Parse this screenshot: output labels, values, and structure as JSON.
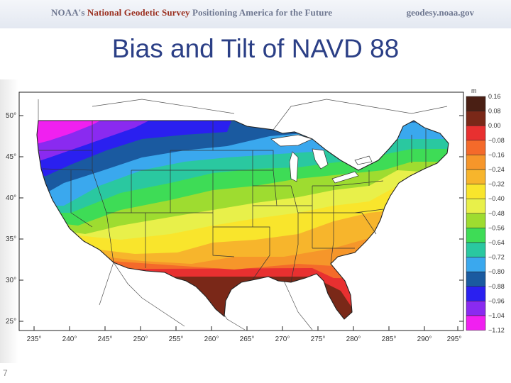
{
  "header": {
    "prefix": "NOAA's",
    "agency": "National Geodetic Survey",
    "tagline": "Positioning America for the Future",
    "site": "geodesy.noaa.gov"
  },
  "title": "Bias and Tilt of NAVD 88",
  "slide_number": "7",
  "map": {
    "latitude_labels": [
      "50°",
      "45°",
      "40°",
      "35°",
      "30°",
      "25°"
    ],
    "longitude_labels": [
      "235°",
      "240°",
      "245°",
      "250°",
      "255°",
      "260°",
      "265°",
      "270°",
      "275°",
      "280°",
      "285°",
      "290°",
      "295°"
    ],
    "legend": {
      "unit": "m",
      "colors": [
        "#4a1f14",
        "#7a2818",
        "#e83030",
        "#f46a2a",
        "#f6962a",
        "#f7b52c",
        "#f9e52c",
        "#e8f04a",
        "#9edc30",
        "#3edc56",
        "#2ac8a0",
        "#3aa8ee",
        "#1a5aa0",
        "#2a20f0",
        "#8a2af0",
        "#f020f0"
      ],
      "labels": [
        "0.16",
        "0.08",
        "0.00",
        "−0.08",
        "−0.16",
        "−0.24",
        "−0.32",
        "−0.40",
        "−0.48",
        "−0.56",
        "−0.64",
        "−0.72",
        "−0.80",
        "−0.88",
        "−0.96",
        "−1.04",
        "−1.12"
      ]
    }
  }
}
